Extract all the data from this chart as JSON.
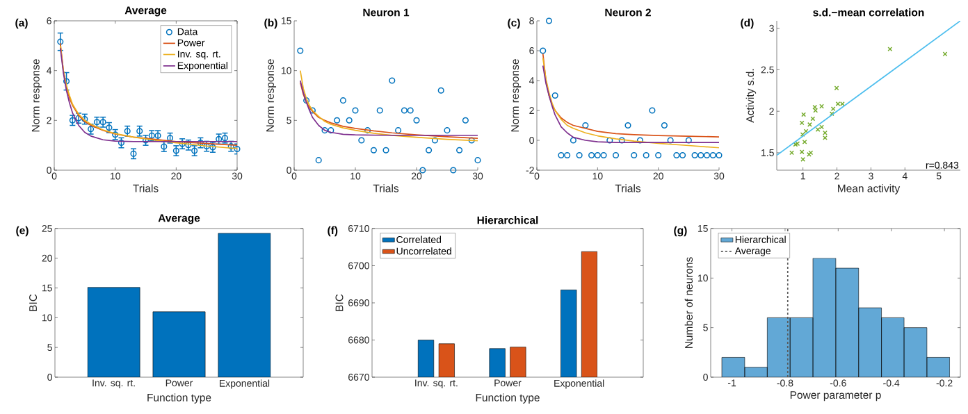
{
  "chart_data": [
    {
      "type": "line",
      "title": "Average",
      "xlabel": "Trials",
      "ylabel": "Norm response",
      "annotations": [
        "(a)"
      ],
      "xlim": [
        0,
        30
      ],
      "xticks": [
        0,
        10,
        20,
        30
      ],
      "ylim": [
        0,
        6
      ],
      "yticks": [
        0,
        2,
        4,
        6
      ],
      "legend": "top right",
      "series": [
        {
          "name": "Data",
          "type": "scatter",
          "marker": "circle",
          "color": "#0072bd",
          "x": [
            1,
            2,
            3,
            4,
            5,
            6,
            7,
            8,
            9,
            10,
            11,
            12,
            13,
            14,
            15,
            16,
            17,
            18,
            19,
            20,
            21,
            22,
            23,
            24,
            25,
            26,
            27,
            28,
            29,
            30
          ],
          "values": [
            5.16,
            3.57,
            2.0,
            2.09,
            2.05,
            1.65,
            1.93,
            1.93,
            1.71,
            1.43,
            1.1,
            1.57,
            0.66,
            1.57,
            1.2,
            1.39,
            1.39,
            0.95,
            1.29,
            0.78,
            1.06,
            1.01,
            0.78,
            1.1,
            0.96,
            0.92,
            1.25,
            1.29,
            0.96,
            0.85
          ],
          "errors": [
            0.35,
            0.35,
            0.2,
            0.2,
            0.2,
            0.2,
            0.2,
            0.2,
            0.2,
            0.2,
            0.2,
            0.2,
            0.2,
            0.2,
            0.2,
            0.2,
            0.2,
            0.2,
            0.2,
            0.2,
            0.2,
            0.2,
            0.2,
            0.2,
            0.2,
            0.2,
            0.2,
            0.2,
            0.2,
            0.2
          ]
        },
        {
          "name": "Power",
          "color": "#d95319",
          "x": [
            1,
            1.5,
            2,
            2.5,
            3,
            4,
            5,
            6,
            8,
            10,
            13,
            16,
            20,
            25,
            30
          ],
          "values": [
            5.1,
            4.0,
            3.35,
            2.9,
            2.6,
            2.2,
            1.95,
            1.8,
            1.6,
            1.45,
            1.33,
            1.25,
            1.15,
            1.07,
            1.0
          ]
        },
        {
          "name": "Inv. sq. rt.",
          "color": "#edb120",
          "x": [
            1,
            1.5,
            2,
            2.5,
            3,
            4,
            5,
            6,
            8,
            10,
            13,
            16,
            20,
            25,
            30
          ],
          "values": [
            5.0,
            4.0,
            3.4,
            3.0,
            2.65,
            2.25,
            2.0,
            1.85,
            1.62,
            1.47,
            1.33,
            1.22,
            1.1,
            0.97,
            0.87
          ]
        },
        {
          "name": "Exponential",
          "color": "#7e2f8e",
          "x": [
            1,
            1.5,
            2,
            2.5,
            3,
            4,
            5,
            6,
            8,
            10,
            13,
            16,
            20,
            25,
            30
          ],
          "values": [
            4.9,
            3.9,
            3.2,
            2.7,
            2.3,
            1.8,
            1.52,
            1.37,
            1.22,
            1.17,
            1.15,
            1.15,
            1.15,
            1.15,
            1.15
          ]
        }
      ]
    },
    {
      "type": "line",
      "title": "Neuron 1",
      "xlabel": "Trials",
      "ylabel": "Norm response",
      "annotations": [
        "(b)"
      ],
      "xlim": [
        0,
        30
      ],
      "xticks": [
        0,
        10,
        20,
        30
      ],
      "ylim": [
        0,
        15
      ],
      "yticks": [
        0,
        5,
        10,
        15
      ],
      "series": [
        {
          "type": "scatter",
          "marker": "circle",
          "color": "#0072bd",
          "x": [
            1,
            2,
            3,
            4,
            5,
            6,
            7,
            8,
            9,
            10,
            11,
            12,
            13,
            14,
            15,
            16,
            17,
            18,
            19,
            20,
            21,
            22,
            23,
            24,
            25,
            26,
            27,
            28,
            29,
            30
          ],
          "values": [
            12,
            7,
            6,
            1,
            4,
            4,
            5,
            7,
            5,
            6,
            3,
            4,
            2,
            6,
            2,
            9,
            4,
            6,
            6,
            5,
            0,
            2,
            3,
            8,
            4,
            0,
            2,
            5,
            3,
            1
          ]
        },
        {
          "color": "#d95319",
          "x": [
            1,
            1.5,
            2,
            2.5,
            3,
            4,
            5,
            6,
            8,
            10,
            13,
            16,
            20,
            25,
            30
          ],
          "values": [
            8.8,
            7.6,
            6.8,
            6.3,
            5.9,
            5.3,
            5.0,
            4.75,
            4.4,
            4.2,
            3.95,
            3.75,
            3.55,
            3.35,
            3.2
          ]
        },
        {
          "color": "#edb120",
          "x": [
            1,
            1.5,
            2,
            2.5,
            3,
            4,
            5,
            6,
            8,
            10,
            13,
            16,
            20,
            25,
            30
          ],
          "values": [
            10,
            8.2,
            7.2,
            6.5,
            6.0,
            5.4,
            4.9,
            4.6,
            4.25,
            4.0,
            3.7,
            3.5,
            3.3,
            3.1,
            2.95
          ]
        },
        {
          "color": "#7e2f8e",
          "x": [
            1,
            1.5,
            2,
            2.5,
            3,
            4,
            5,
            6,
            8,
            10,
            13,
            16,
            20,
            25,
            30
          ],
          "values": [
            9,
            7.8,
            6.8,
            6.0,
            5.3,
            4.5,
            4.0,
            3.8,
            3.6,
            3.55,
            3.52,
            3.5,
            3.5,
            3.5,
            3.5
          ]
        }
      ]
    },
    {
      "type": "line",
      "title": "Neuron 2",
      "xlabel": "Trials",
      "ylabel": "Norm response",
      "annotations": [
        "(c)"
      ],
      "xlim": [
        0,
        30
      ],
      "xticks": [
        0,
        10,
        20,
        30
      ],
      "ylim": [
        -2,
        8
      ],
      "yticks": [
        -2,
        0,
        2,
        4,
        6,
        8
      ],
      "series": [
        {
          "type": "scatter",
          "marker": "circle",
          "color": "#0072bd",
          "x": [
            1,
            2,
            3,
            4,
            5,
            6,
            7,
            8,
            9,
            10,
            11,
            12,
            13,
            14,
            15,
            16,
            17,
            18,
            19,
            20,
            21,
            22,
            23,
            24,
            25,
            26,
            27,
            28,
            29,
            30
          ],
          "values": [
            6,
            8,
            3,
            -1,
            -1,
            0,
            -1,
            1,
            -1,
            -1,
            -1,
            0,
            -1,
            0,
            1,
            -1,
            0,
            -1,
            2,
            -1,
            1,
            0,
            -1,
            -1,
            0,
            -1,
            -1,
            -1,
            -1,
            -1
          ]
        },
        {
          "color": "#d95319",
          "x": [
            1,
            1.5,
            2,
            2.5,
            3,
            4,
            5,
            6,
            8,
            10,
            13,
            16,
            20,
            25,
            30
          ],
          "values": [
            5.8,
            4.0,
            3.0,
            2.4,
            2.0,
            1.5,
            1.2,
            1.0,
            0.8,
            0.6,
            0.45,
            0.38,
            0.32,
            0.27,
            0.23
          ]
        },
        {
          "color": "#edb120",
          "x": [
            1,
            1.5,
            2,
            2.5,
            3,
            4,
            5,
            6,
            8,
            10,
            13,
            16,
            20,
            25,
            30
          ],
          "values": [
            5.5,
            4.1,
            3.2,
            2.5,
            2.0,
            1.4,
            1.0,
            0.8,
            0.5,
            0.3,
            0.1,
            -0.05,
            -0.2,
            -0.35,
            -0.5
          ]
        },
        {
          "color": "#7e2f8e",
          "x": [
            1,
            1.5,
            2,
            2.5,
            3,
            4,
            5,
            6,
            8,
            10,
            13,
            16,
            20,
            25,
            30
          ],
          "values": [
            5.0,
            3.8,
            3.0,
            2.3,
            1.7,
            0.9,
            0.5,
            0.2,
            0.0,
            -0.1,
            -0.15,
            -0.15,
            -0.15,
            -0.15,
            -0.15
          ]
        }
      ]
    },
    {
      "type": "scatter",
      "title": "s.d.−mean correlation",
      "xlabel": "Mean activity",
      "ylabel": "Activity s.d.",
      "annotations": [
        "(d)",
        "r=0.843"
      ],
      "xlim": [
        0.23,
        5.63
      ],
      "xticks": [
        1,
        2,
        3,
        4,
        5
      ],
      "ylim": [
        1.29,
        3.09
      ],
      "yticks": [
        1.5,
        2,
        2.5,
        3
      ],
      "series": [
        {
          "marker": "cross",
          "color": "#77ac30",
          "x": [
            3.56,
            5.18,
            1.99,
            0.67,
            0.78,
            0.84,
            1.0,
            0.97,
            1.05,
            0.97,
            1.02,
            0.99,
            1.09,
            1.2,
            1.29,
            1.35,
            1.37,
            1.23,
            1.18,
            1.55,
            1.44,
            1.55,
            1.65,
            1.65,
            1.89,
            1.85,
            2.03,
            2.16
          ],
          "values": [
            2.75,
            2.69,
            2.28,
            1.5,
            1.6,
            1.61,
            1.42,
            1.51,
            1.63,
            1.86,
            1.96,
            1.72,
            1.76,
            1.84,
            1.91,
            2.05,
            2.01,
            1.5,
            1.48,
            2.06,
            1.78,
            1.81,
            1.74,
            1.68,
            2.03,
            1.97,
            2.09,
            2.09
          ]
        },
        {
          "type": "line",
          "color": "#4dbeee",
          "x": [
            0.23,
            5.63
          ],
          "values": [
            1.47,
            3.09
          ]
        }
      ]
    },
    {
      "type": "bar",
      "title": "Average",
      "xlabel": "Function type",
      "ylabel": "BIC",
      "annotations": [
        "(e)"
      ],
      "categories": [
        "Inv. sq. rt.",
        "Power",
        "Exponential"
      ],
      "values": [
        15.1,
        11.0,
        24.2
      ],
      "color": "#0072bd",
      "ylim": [
        0,
        25
      ],
      "yticks": [
        0,
        5,
        10,
        15,
        20,
        25
      ]
    },
    {
      "type": "bar",
      "title": "Hierarchical",
      "xlabel": "Function type",
      "ylabel": "BIC",
      "annotations": [
        "(f)"
      ],
      "categories": [
        "Inv. sq. rt.",
        "Power",
        "Exponential"
      ],
      "ylim": [
        6670,
        6710
      ],
      "yticks": [
        6670,
        6680,
        6690,
        6700,
        6710
      ],
      "legend": "top left",
      "series": [
        {
          "name": "Correlated",
          "color": "#0072bd",
          "values": [
            6680,
            6677.7,
            6693.5
          ]
        },
        {
          "name": "Uncorrelated",
          "color": "#d95319",
          "values": [
            6679,
            6678.1,
            6703.8
          ]
        }
      ]
    },
    {
      "type": "histogram",
      "xlabel": "Power parameter p",
      "ylabel": "Number of neurons",
      "annotations": [
        "(g)"
      ],
      "bins": [
        -1.038,
        -0.952,
        -0.867,
        -0.781,
        -0.695,
        -0.609,
        -0.523,
        -0.437,
        -0.352,
        -0.266,
        -0.18
      ],
      "xlim": [
        -1.08,
        -0.14
      ],
      "xticks": [
        -1,
        -0.8,
        -0.6,
        -0.4,
        -0.2
      ],
      "ylim": [
        0,
        15
      ],
      "yticks": [
        0,
        5,
        10,
        15
      ],
      "legend": "top left",
      "series": [
        {
          "name": "Hierarchical",
          "color": "#62a8d6",
          "values": [
            2,
            1,
            6,
            6,
            12,
            11,
            7,
            6,
            5,
            2
          ]
        }
      ],
      "ref_lines": [
        {
          "axis": "x",
          "value": -0.79,
          "label": "Average",
          "color": "#595959",
          "line_style": "dashed"
        }
      ]
    }
  ]
}
